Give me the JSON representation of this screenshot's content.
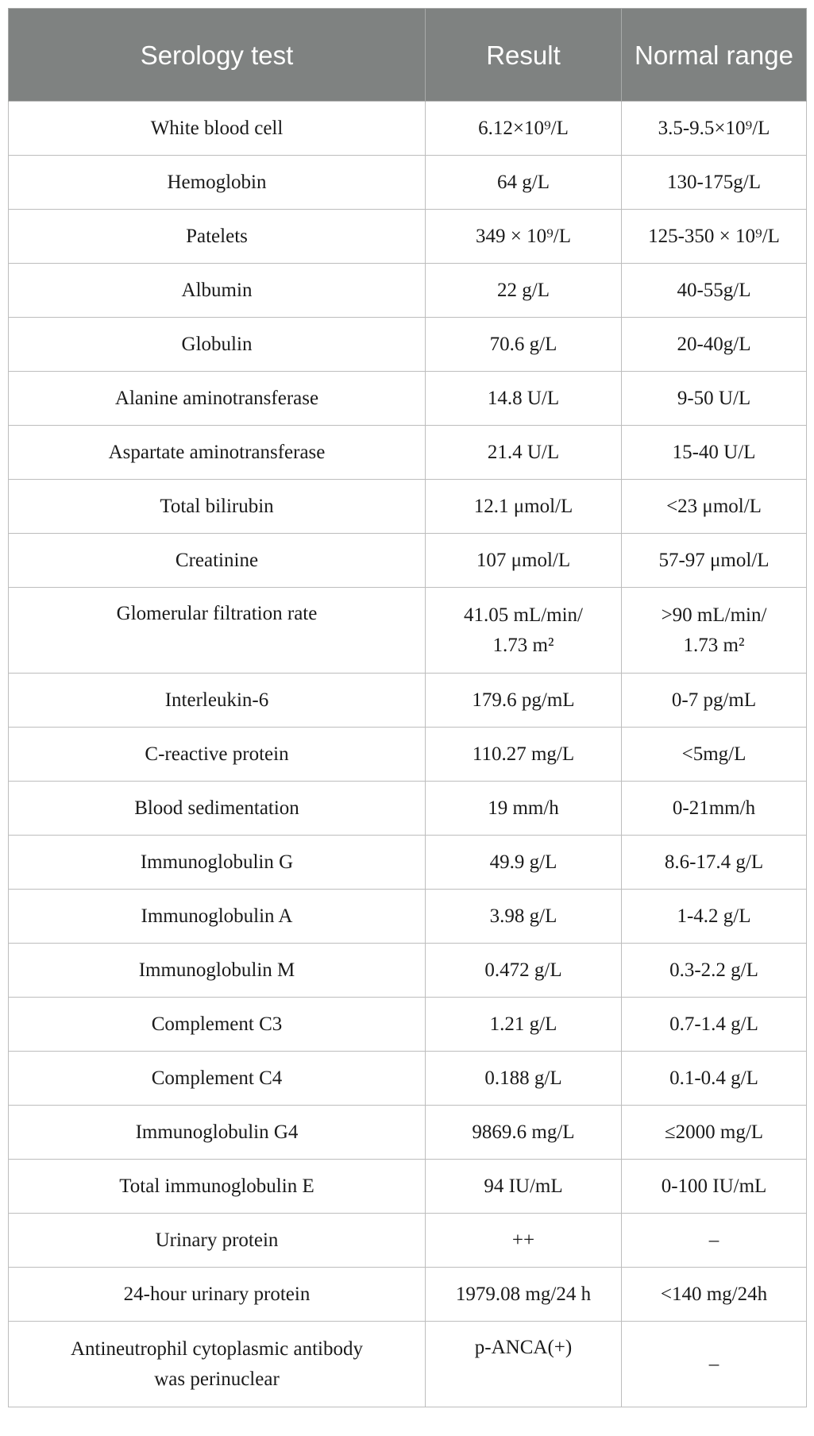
{
  "table": {
    "headers": [
      "Serology test",
      "Result",
      "Normal\nrange"
    ],
    "rows": [
      {
        "test": "White blood cell",
        "result": "6.12×10⁹/L",
        "range": "3.5-9.5×10⁹/L"
      },
      {
        "test": "Hemoglobin",
        "result": "64 g/L",
        "range": "130-175g/L"
      },
      {
        "test": "Patelets",
        "result": "349 × 10⁹/L",
        "range": "125-350 × 10⁹/L"
      },
      {
        "test": "Albumin",
        "result": "22 g/L",
        "range": "40-55g/L"
      },
      {
        "test": "Globulin",
        "result": "70.6 g/L",
        "range": "20-40g/L"
      },
      {
        "test": "Alanine aminotransferase",
        "result": "14.8 U/L",
        "range": "9-50 U/L"
      },
      {
        "test": "Aspartate aminotransferase",
        "result": "21.4 U/L",
        "range": "15-40 U/L"
      },
      {
        "test": "Total bilirubin",
        "result": "12.1 μmol/L",
        "range": "<23 μmol/L"
      },
      {
        "test": "Creatinine",
        "result": "107 μmol/L",
        "range": "57-97 μmol/L"
      },
      {
        "test": "Glomerular filtration rate",
        "result": "41.05 mL/min/\n1.73 m²",
        "range": ">90 mL/min/\n1.73 m²"
      },
      {
        "test": "Interleukin-6",
        "result": "179.6 pg/mL",
        "range": "0-7 pg/mL"
      },
      {
        "test": "C-reactive protein",
        "result": "110.27 mg/L",
        "range": "<5mg/L"
      },
      {
        "test": "Blood sedimentation",
        "result": "19 mm/h",
        "range": "0-21mm/h"
      },
      {
        "test": "Immunoglobulin G",
        "result": "49.9 g/L",
        "range": "8.6-17.4 g/L"
      },
      {
        "test": "Immunoglobulin A",
        "result": "3.98 g/L",
        "range": "1-4.2 g/L"
      },
      {
        "test": "Immunoglobulin M",
        "result": "0.472 g/L",
        "range": "0.3-2.2 g/L"
      },
      {
        "test": "Complement C3",
        "result": "1.21 g/L",
        "range": "0.7-1.4 g/L"
      },
      {
        "test": "Complement C4",
        "result": "0.188 g/L",
        "range": "0.1-0.4 g/L"
      },
      {
        "test": "Immunoglobulin G4",
        "result": "9869.6 mg/L",
        "range": "≤2000 mg/L"
      },
      {
        "test": "Total immunoglobulin E",
        "result": "94 IU/mL",
        "range": "0-100 IU/mL"
      },
      {
        "test": "Urinary protein",
        "result": "++",
        "range": "–"
      },
      {
        "test": "24-hour urinary protein",
        "result": "1979.08 mg/24 h",
        "range": "<140 mg/24h"
      },
      {
        "test": "Antineutrophil cytoplasmic antibody\nwas perinuclear",
        "result": "p-ANCA(+)",
        "range": "–"
      }
    ]
  },
  "colors": {
    "header_bg": "#7f8281",
    "header_text": "#ffffff",
    "border": "#bdbdbd"
  }
}
